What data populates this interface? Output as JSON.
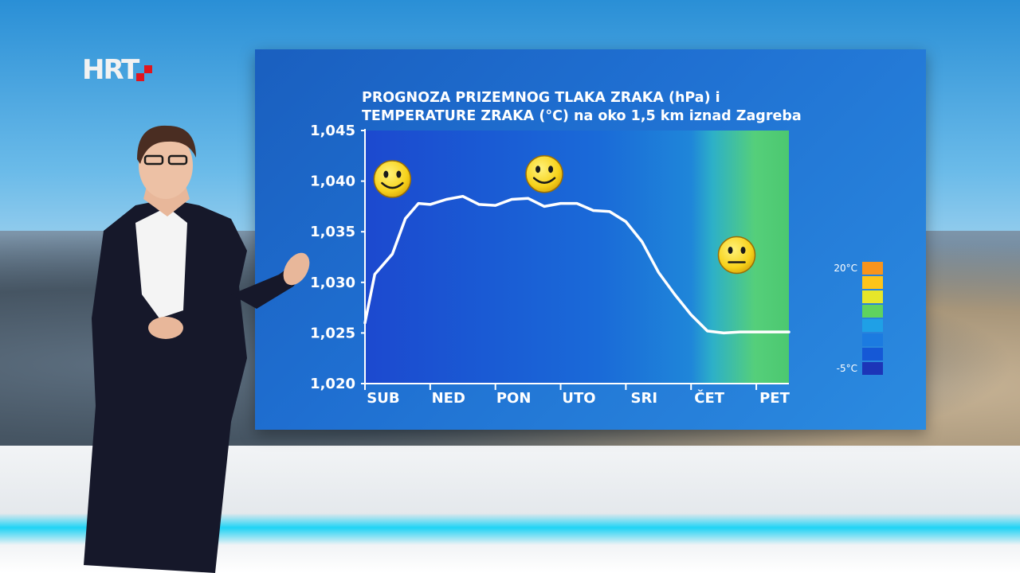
{
  "channel": {
    "logo_text": "HRT"
  },
  "chart_data": {
    "type": "line",
    "title": "PROGNOZA PRIZEMNOG TLAKA ZRAKA (hPa) i TEMPERATURE ZRAKA (°C) na oko 1,5 km iznad Zagreba",
    "title_lines": [
      "PROGNOZA PRIZEMNOG TLAKA ZRAKA (hPa) i",
      "TEMPERATURE ZRAKA (°C) na oko 1,5 km iznad Zagreba"
    ],
    "categories": [
      "SUB",
      "NED",
      "PON",
      "UTO",
      "SRI",
      "ČET",
      "PET"
    ],
    "yticks": [
      "1,045",
      "1,040",
      "1,035",
      "1,030",
      "1,025",
      "1,020"
    ],
    "ylim": [
      1020,
      1045
    ],
    "series": [
      {
        "x": [
          0,
          0.15,
          0.42,
          0.62,
          0.82,
          1.0,
          1.25,
          1.5,
          1.75,
          2.0,
          2.25,
          2.5,
          2.75,
          3.0,
          3.25,
          3.5,
          3.75,
          4.0,
          4.25,
          4.5,
          4.75,
          5.0,
          5.25,
          5.5,
          5.75,
          6.0,
          6.25,
          6.5
        ],
        "values": [
          1026.0,
          1030.8,
          1032.8,
          1036.3,
          1037.8,
          1037.7,
          1038.2,
          1038.5,
          1037.7,
          1037.6,
          1038.2,
          1038.3,
          1037.5,
          1037.8,
          1037.8,
          1037.1,
          1037.0,
          1036.0,
          1034.0,
          1031.0,
          1028.8,
          1026.8,
          1025.2,
          1025.0,
          1025.1,
          1025.1,
          1025.1,
          1025.1
        ]
      }
    ],
    "smiley_moods": [
      "happy",
      "happy",
      "neutral"
    ],
    "temperature_legend": {
      "max_label": "20°C",
      "min_label": "-5°C",
      "colors": [
        "#f7941d",
        "#fcc419",
        "#e6e62a",
        "#5fd35f",
        "#1fa0e6",
        "#1c7be0",
        "#1558d6",
        "#1c35b8"
      ]
    },
    "background_temperature_colors": [
      "#1d4fd1",
      "#1d5fd6",
      "#1c6ad8",
      "#1a7ed8",
      "#2a9ad8",
      "#4fd07a"
    ]
  }
}
